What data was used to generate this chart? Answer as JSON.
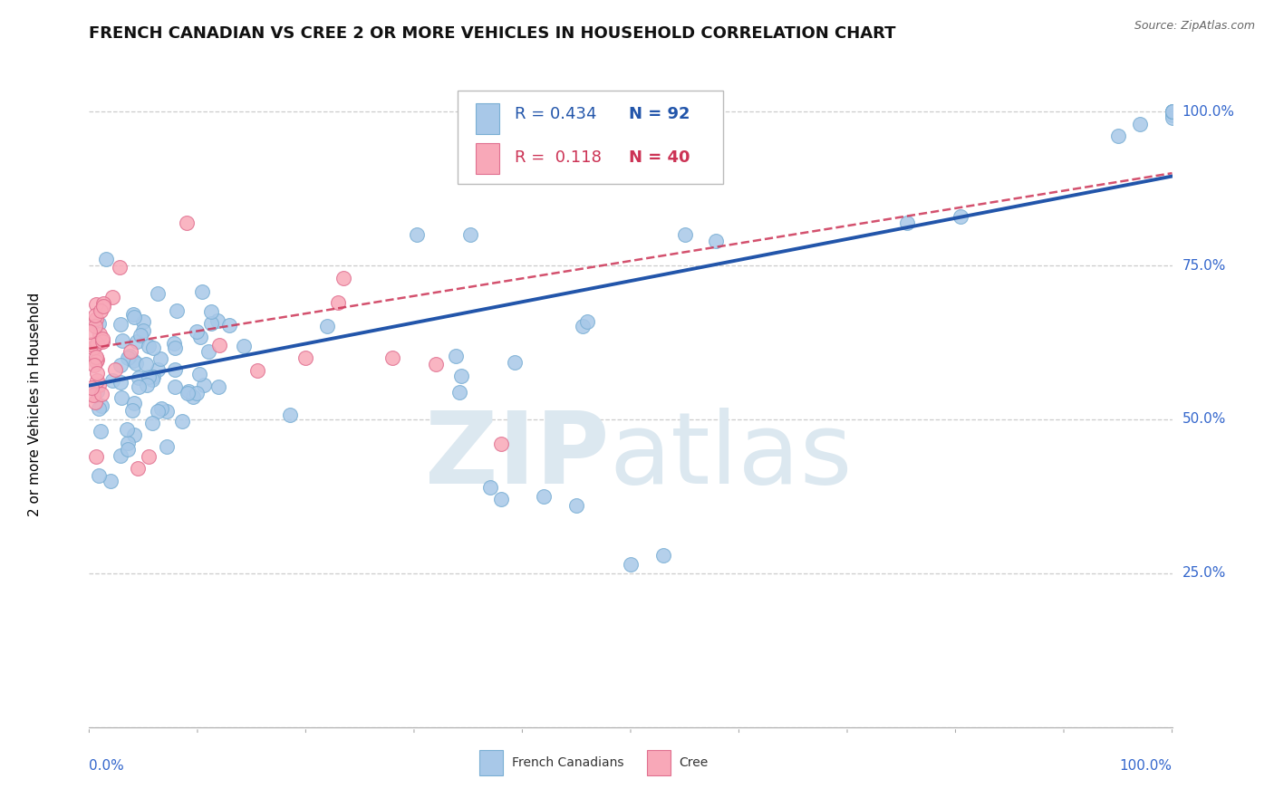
{
  "title": "FRENCH CANADIAN VS CREE 2 OR MORE VEHICLES IN HOUSEHOLD CORRELATION CHART",
  "source": "Source: ZipAtlas.com",
  "ylabel": "2 or more Vehicles in Household",
  "ylim": [
    0.0,
    1.05
  ],
  "xlim": [
    0.0,
    1.0
  ],
  "ytick_positions": [
    0.0,
    0.25,
    0.5,
    0.75,
    1.0
  ],
  "blue_color": "#a8c8e8",
  "blue_edge_color": "#7aafd4",
  "blue_line_color": "#2255aa",
  "pink_color": "#f8a8b8",
  "pink_edge_color": "#e07090",
  "pink_line_color": "#cc3355",
  "watermark_color": "#dce8f0",
  "background_color": "#ffffff",
  "title_fontsize": 13,
  "axis_tick_fontsize": 11,
  "ylabel_fontsize": 11,
  "legend_fontsize": 13,
  "blue_trend": [
    0.0,
    1.0,
    0.555,
    0.895
  ],
  "pink_trend": [
    0.0,
    1.0,
    0.615,
    0.9
  ]
}
